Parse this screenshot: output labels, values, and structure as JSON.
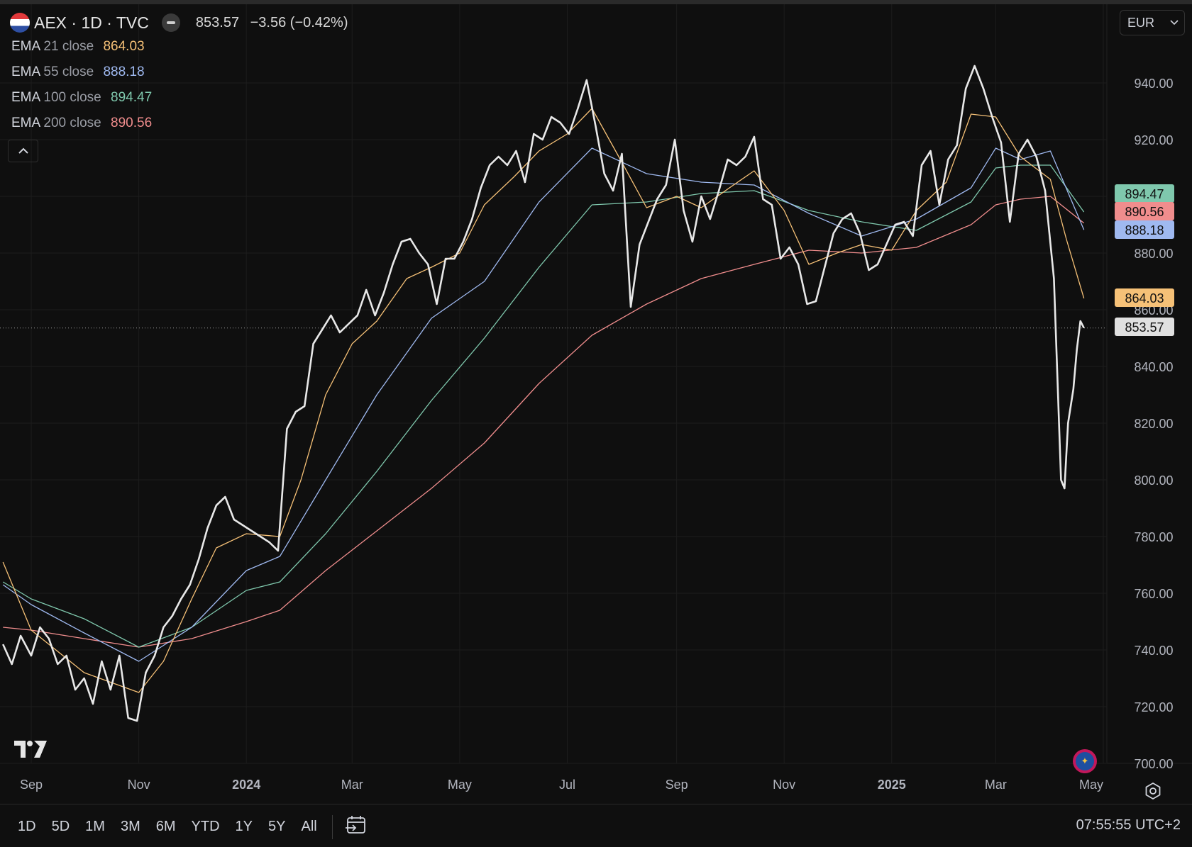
{
  "header": {
    "symbol": "AEX · 1D · TVC",
    "price": "853.57",
    "change": "−3.56 (−0.42%)"
  },
  "indicators": [
    {
      "name": "EMA",
      "params": "21 close",
      "value": "864.03",
      "color": "#f6c177"
    },
    {
      "name": "EMA",
      "params": "55 close",
      "value": "888.18",
      "color": "#9fb9f0"
    },
    {
      "name": "EMA",
      "params": "100 close",
      "value": "894.47",
      "color": "#7fc8ad"
    },
    {
      "name": "EMA",
      "params": "200 close",
      "value": "890.56",
      "color": "#f08d8d"
    }
  ],
  "currency": "EUR",
  "range_buttons": [
    "1D",
    "5D",
    "1M",
    "3M",
    "6M",
    "YTD",
    "1Y",
    "5Y",
    "All"
  ],
  "clock": "07:55:55 UTC+2",
  "icons": [
    "collapse-chevron-icon",
    "chevron-down-icon",
    "tradingview-logo-icon",
    "eu-flag-icon",
    "settings-gear-icon",
    "calendar-goto-icon"
  ],
  "chart_data": {
    "type": "line",
    "ylim": [
      695,
      955
    ],
    "yticks": [
      700,
      720,
      740,
      760,
      780,
      800,
      820,
      840,
      860,
      880,
      900,
      920,
      940
    ],
    "ytick_labels": [
      "700.00",
      "720.00",
      "740.00",
      "760.00",
      "780.00",
      "800.00",
      "820.00",
      "840.00",
      "860.00",
      "880.00",
      "900.00",
      "920.00",
      "940.00"
    ],
    "xticks": [
      {
        "label": "Sep",
        "date": "2023-09-01",
        "bold": false
      },
      {
        "label": "Nov",
        "date": "2023-11-01",
        "bold": false
      },
      {
        "label": "2024",
        "date": "2024-01-01",
        "bold": true
      },
      {
        "label": "Mar",
        "date": "2024-03-01",
        "bold": false
      },
      {
        "label": "May",
        "date": "2024-05-01",
        "bold": false
      },
      {
        "label": "Jul",
        "date": "2024-07-01",
        "bold": false
      },
      {
        "label": "Sep",
        "date": "2024-09-01",
        "bold": false
      },
      {
        "label": "Nov",
        "date": "2024-11-01",
        "bold": false
      },
      {
        "label": "2025",
        "date": "2025-01-01",
        "bold": true
      },
      {
        "label": "Mar",
        "date": "2025-03-01",
        "bold": false
      },
      {
        "label": "May",
        "date": "2025-05-01",
        "bold": false
      }
    ],
    "last_price": 853.57,
    "series": [
      {
        "name": "AEX",
        "color": "#e8e8e8",
        "points": [
          [
            "2023-08-16",
            742
          ],
          [
            "2023-08-21",
            735
          ],
          [
            "2023-08-26",
            745
          ],
          [
            "2023-09-01",
            738
          ],
          [
            "2023-09-06",
            748
          ],
          [
            "2023-09-11",
            744
          ],
          [
            "2023-09-16",
            735
          ],
          [
            "2023-09-21",
            738
          ],
          [
            "2023-09-26",
            726
          ],
          [
            "2023-10-01",
            730
          ],
          [
            "2023-10-06",
            721
          ],
          [
            "2023-10-11",
            736
          ],
          [
            "2023-10-16",
            726
          ],
          [
            "2023-10-21",
            738
          ],
          [
            "2023-10-26",
            716
          ],
          [
            "2023-10-31",
            715
          ],
          [
            "2023-11-05",
            732
          ],
          [
            "2023-11-10",
            738
          ],
          [
            "2023-11-15",
            748
          ],
          [
            "2023-11-20",
            752
          ],
          [
            "2023-11-25",
            758
          ],
          [
            "2023-11-30",
            763
          ],
          [
            "2023-12-05",
            772
          ],
          [
            "2023-12-10",
            783
          ],
          [
            "2023-12-15",
            791
          ],
          [
            "2023-12-20",
            794
          ],
          [
            "2023-12-25",
            786
          ],
          [
            "2023-12-30",
            784
          ],
          [
            "2024-01-04",
            782
          ],
          [
            "2024-01-09",
            780
          ],
          [
            "2024-01-14",
            778
          ],
          [
            "2024-01-19",
            775
          ],
          [
            "2024-01-24",
            818
          ],
          [
            "2024-01-29",
            824
          ],
          [
            "2024-02-03",
            826
          ],
          [
            "2024-02-08",
            848
          ],
          [
            "2024-02-13",
            853
          ],
          [
            "2024-02-18",
            858
          ],
          [
            "2024-02-23",
            852
          ],
          [
            "2024-02-28",
            855
          ],
          [
            "2024-03-04",
            858
          ],
          [
            "2024-03-09",
            867
          ],
          [
            "2024-03-14",
            858
          ],
          [
            "2024-03-19",
            866
          ],
          [
            "2024-03-24",
            876
          ],
          [
            "2024-03-29",
            884
          ],
          [
            "2024-04-03",
            885
          ],
          [
            "2024-04-08",
            880
          ],
          [
            "2024-04-13",
            876
          ],
          [
            "2024-04-18",
            862
          ],
          [
            "2024-04-23",
            878
          ],
          [
            "2024-04-28",
            878
          ],
          [
            "2024-05-03",
            884
          ],
          [
            "2024-05-08",
            892
          ],
          [
            "2024-05-13",
            903
          ],
          [
            "2024-05-18",
            911
          ],
          [
            "2024-05-23",
            914
          ],
          [
            "2024-05-28",
            911
          ],
          [
            "2024-06-02",
            916
          ],
          [
            "2024-06-07",
            905
          ],
          [
            "2024-06-12",
            922
          ],
          [
            "2024-06-17",
            920
          ],
          [
            "2024-06-22",
            928
          ],
          [
            "2024-06-27",
            926
          ],
          [
            "2024-07-02",
            922
          ],
          [
            "2024-07-07",
            931
          ],
          [
            "2024-07-12",
            941
          ],
          [
            "2024-07-17",
            925
          ],
          [
            "2024-07-22",
            908
          ],
          [
            "2024-07-27",
            902
          ],
          [
            "2024-08-01",
            915
          ],
          [
            "2024-08-06",
            861
          ],
          [
            "2024-08-11",
            883
          ],
          [
            "2024-08-16",
            891
          ],
          [
            "2024-08-21",
            899
          ],
          [
            "2024-08-26",
            904
          ],
          [
            "2024-08-31",
            920
          ],
          [
            "2024-09-05",
            895
          ],
          [
            "2024-09-10",
            884
          ],
          [
            "2024-09-15",
            900
          ],
          [
            "2024-09-20",
            892
          ],
          [
            "2024-09-25",
            902
          ],
          [
            "2024-09-30",
            913
          ],
          [
            "2024-10-05",
            911
          ],
          [
            "2024-10-10",
            914
          ],
          [
            "2024-10-15",
            921
          ],
          [
            "2024-10-20",
            899
          ],
          [
            "2024-10-25",
            897
          ],
          [
            "2024-10-30",
            878
          ],
          [
            "2024-11-04",
            882
          ],
          [
            "2024-11-09",
            876
          ],
          [
            "2024-11-14",
            862
          ],
          [
            "2024-11-19",
            863
          ],
          [
            "2024-11-24",
            875
          ],
          [
            "2024-11-29",
            887
          ],
          [
            "2024-12-04",
            892
          ],
          [
            "2024-12-09",
            894
          ],
          [
            "2024-12-14",
            887
          ],
          [
            "2024-12-19",
            874
          ],
          [
            "2024-12-24",
            876
          ],
          [
            "2024-12-29",
            883
          ],
          [
            "2025-01-03",
            890
          ],
          [
            "2025-01-08",
            891
          ],
          [
            "2025-01-13",
            886
          ],
          [
            "2025-01-18",
            911
          ],
          [
            "2025-01-23",
            916
          ],
          [
            "2025-01-28",
            897
          ],
          [
            "2025-02-02",
            913
          ],
          [
            "2025-02-07",
            918
          ],
          [
            "2025-02-12",
            938
          ],
          [
            "2025-02-17",
            946
          ],
          [
            "2025-02-22",
            938
          ],
          [
            "2025-02-27",
            928
          ],
          [
            "2025-03-04",
            919
          ],
          [
            "2025-03-09",
            891
          ],
          [
            "2025-03-14",
            915
          ],
          [
            "2025-03-19",
            920
          ],
          [
            "2025-03-24",
            914
          ],
          [
            "2025-03-29",
            902
          ],
          [
            "2025-04-03",
            871
          ],
          [
            "2025-04-07",
            800
          ],
          [
            "2025-04-09",
            797
          ],
          [
            "2025-04-11",
            820
          ],
          [
            "2025-04-14",
            832
          ],
          [
            "2025-04-16",
            846
          ],
          [
            "2025-04-18",
            856
          ],
          [
            "2025-04-20",
            853.57
          ]
        ]
      },
      {
        "name": "EMA 21 close",
        "color": "#f6c177",
        "points": [
          [
            "2023-08-16",
            771
          ],
          [
            "2023-09-01",
            747
          ],
          [
            "2023-10-01",
            732
          ],
          [
            "2023-11-01",
            725
          ],
          [
            "2023-11-15",
            736
          ],
          [
            "2023-12-01",
            758
          ],
          [
            "2023-12-15",
            776
          ],
          [
            "2024-01-01",
            781
          ],
          [
            "2024-01-20",
            780
          ],
          [
            "2024-02-01",
            800
          ],
          [
            "2024-02-15",
            830
          ],
          [
            "2024-03-01",
            848
          ],
          [
            "2024-03-15",
            856
          ],
          [
            "2024-04-01",
            871
          ],
          [
            "2024-04-15",
            875
          ],
          [
            "2024-05-01",
            880
          ],
          [
            "2024-05-15",
            897
          ],
          [
            "2024-06-01",
            907
          ],
          [
            "2024-06-15",
            916
          ],
          [
            "2024-07-01",
            922
          ],
          [
            "2024-07-15",
            931
          ],
          [
            "2024-08-01",
            912
          ],
          [
            "2024-08-15",
            896
          ],
          [
            "2024-09-01",
            900
          ],
          [
            "2024-09-15",
            896
          ],
          [
            "2024-10-01",
            903
          ],
          [
            "2024-10-15",
            909
          ],
          [
            "2024-11-01",
            895
          ],
          [
            "2024-11-15",
            876
          ],
          [
            "2024-12-01",
            880
          ],
          [
            "2024-12-15",
            883
          ],
          [
            "2025-01-01",
            881
          ],
          [
            "2025-01-15",
            895
          ],
          [
            "2025-02-01",
            905
          ],
          [
            "2025-02-15",
            929
          ],
          [
            "2025-03-01",
            928
          ],
          [
            "2025-03-15",
            914
          ],
          [
            "2025-04-01",
            906
          ],
          [
            "2025-04-10",
            885
          ],
          [
            "2025-04-20",
            864.03
          ]
        ]
      },
      {
        "name": "EMA 55 close",
        "color": "#9fb9f0",
        "points": [
          [
            "2023-08-16",
            763
          ],
          [
            "2023-09-01",
            756
          ],
          [
            "2023-10-01",
            746
          ],
          [
            "2023-11-01",
            736
          ],
          [
            "2023-12-01",
            748
          ],
          [
            "2024-01-01",
            768
          ],
          [
            "2024-01-20",
            773
          ],
          [
            "2024-02-15",
            800
          ],
          [
            "2024-03-15",
            830
          ],
          [
            "2024-04-15",
            857
          ],
          [
            "2024-05-15",
            870
          ],
          [
            "2024-06-15",
            898
          ],
          [
            "2024-07-15",
            917
          ],
          [
            "2024-08-15",
            908
          ],
          [
            "2024-09-15",
            905
          ],
          [
            "2024-10-15",
            904
          ],
          [
            "2024-11-15",
            894
          ],
          [
            "2024-12-15",
            886
          ],
          [
            "2025-01-15",
            892
          ],
          [
            "2025-02-15",
            903
          ],
          [
            "2025-03-01",
            917
          ],
          [
            "2025-03-15",
            913
          ],
          [
            "2025-04-01",
            916
          ],
          [
            "2025-04-20",
            888.18
          ]
        ]
      },
      {
        "name": "EMA 100 close",
        "color": "#7fc8ad",
        "points": [
          [
            "2023-08-16",
            764
          ],
          [
            "2023-09-01",
            758
          ],
          [
            "2023-10-01",
            751
          ],
          [
            "2023-11-01",
            741
          ],
          [
            "2023-12-01",
            748
          ],
          [
            "2024-01-01",
            761
          ],
          [
            "2024-01-20",
            764
          ],
          [
            "2024-02-15",
            781
          ],
          [
            "2024-03-15",
            803
          ],
          [
            "2024-04-15",
            828
          ],
          [
            "2024-05-15",
            850
          ],
          [
            "2024-06-15",
            875
          ],
          [
            "2024-07-15",
            897
          ],
          [
            "2024-08-15",
            898
          ],
          [
            "2024-09-15",
            901
          ],
          [
            "2024-10-15",
            902
          ],
          [
            "2024-11-15",
            895
          ],
          [
            "2024-12-15",
            891
          ],
          [
            "2025-01-15",
            888
          ],
          [
            "2025-02-15",
            898
          ],
          [
            "2025-03-01",
            910
          ],
          [
            "2025-03-15",
            911
          ],
          [
            "2025-04-01",
            911
          ],
          [
            "2025-04-20",
            894.47
          ]
        ]
      },
      {
        "name": "EMA 200 close",
        "color": "#f08d8d",
        "points": [
          [
            "2023-08-16",
            748
          ],
          [
            "2023-09-01",
            747
          ],
          [
            "2023-10-01",
            744
          ],
          [
            "2023-11-01",
            741
          ],
          [
            "2023-12-01",
            744
          ],
          [
            "2024-01-01",
            750
          ],
          [
            "2024-01-20",
            754
          ],
          [
            "2024-02-15",
            768
          ],
          [
            "2024-03-15",
            782
          ],
          [
            "2024-04-15",
            797
          ],
          [
            "2024-05-15",
            813
          ],
          [
            "2024-06-15",
            834
          ],
          [
            "2024-07-15",
            851
          ],
          [
            "2024-08-15",
            862
          ],
          [
            "2024-09-15",
            871
          ],
          [
            "2024-10-15",
            876
          ],
          [
            "2024-11-15",
            881
          ],
          [
            "2024-12-15",
            880
          ],
          [
            "2025-01-15",
            882
          ],
          [
            "2025-02-15",
            890
          ],
          [
            "2025-03-01",
            897
          ],
          [
            "2025-03-15",
            899
          ],
          [
            "2025-04-01",
            900
          ],
          [
            "2025-04-20",
            890.56
          ]
        ]
      }
    ],
    "price_tags": [
      {
        "value": 894.47,
        "color": "#7fc8ad"
      },
      {
        "value": 890.56,
        "color": "#f08d8d"
      },
      {
        "value": 888.18,
        "color": "#9fb9f0"
      },
      {
        "value": 864.03,
        "color": "#f6c177"
      },
      {
        "value": 853.57,
        "color": "#e0e0e0"
      }
    ]
  }
}
